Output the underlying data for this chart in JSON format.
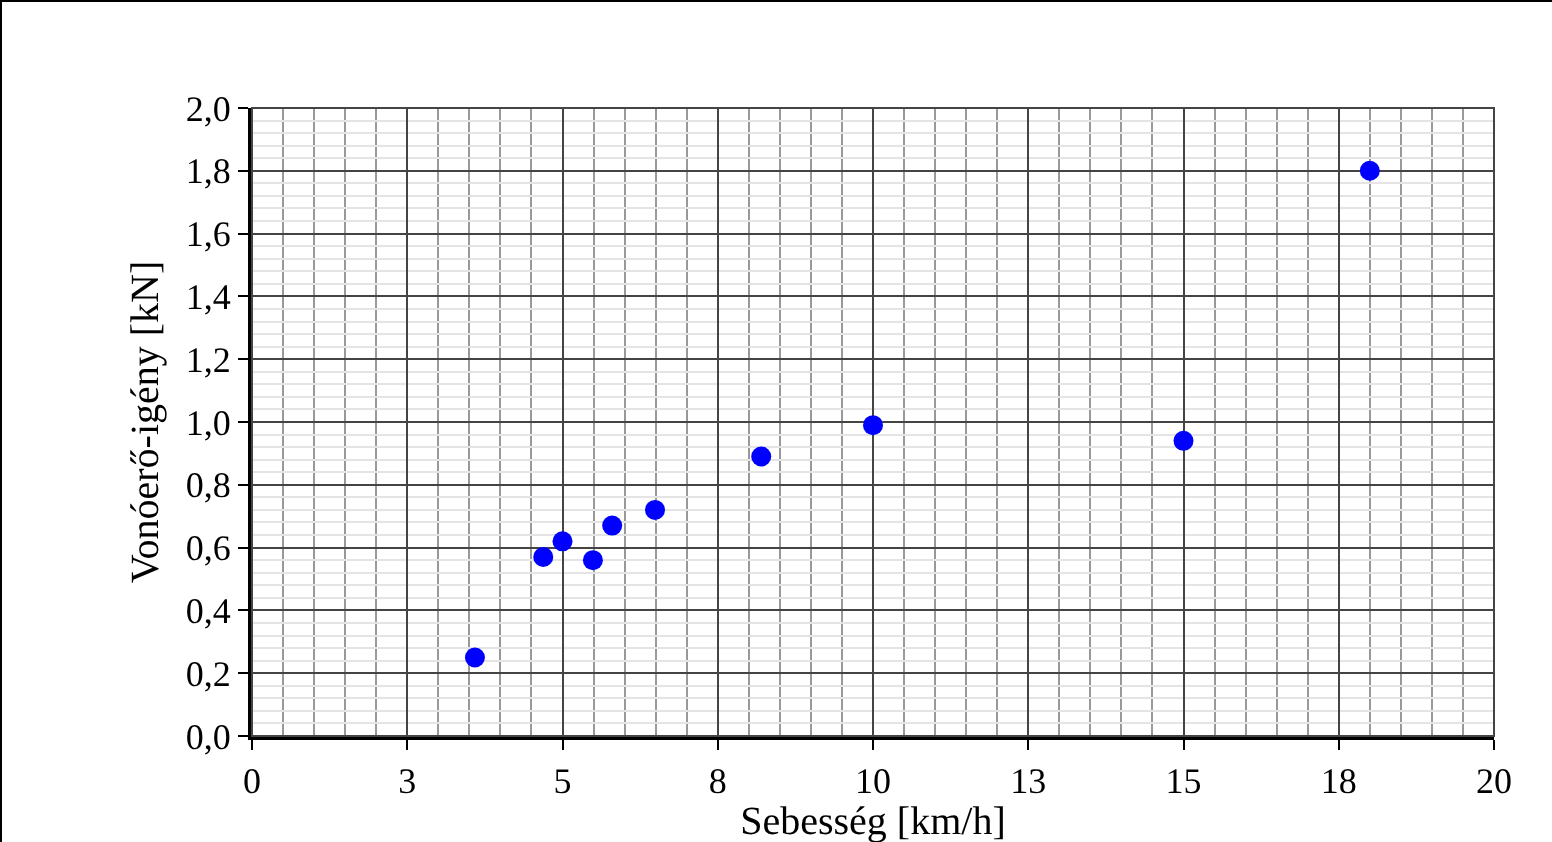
{
  "chart_data": {
    "type": "scatter",
    "xlabel": "Sebesség [km/h]",
    "ylabel": "Vonóerő-igény [kN]",
    "series": [
      {
        "color": "#0000ff",
        "x": [
          3.59,
          4.69,
          5.0,
          5.49,
          5.8,
          6.49,
          8.2,
          10.0,
          15.0,
          18.0
        ],
        "values": [
          0.25,
          0.57,
          0.62,
          0.56,
          0.67,
          0.72,
          0.89,
          0.99,
          0.94,
          1.8
        ]
      }
    ],
    "xlim": [
      0,
      20
    ],
    "xticks": [
      0,
      {
        "value": 2.5,
        "label": "3"
      },
      5,
      {
        "value": 7.5,
        "label": "8"
      },
      10,
      {
        "value": 12.5,
        "label": "13"
      },
      15,
      {
        "value": 17.5,
        "label": "18"
      },
      20
    ],
    "ylim": [
      0,
      2
    ],
    "yticks": [
      {
        "value": 0,
        "label": "0,0"
      },
      {
        "value": 0.2,
        "label": "0,2"
      },
      {
        "value": 0.4,
        "label": "0,4"
      },
      {
        "value": 0.6,
        "label": "0,6"
      },
      {
        "value": 0.8,
        "label": "0,8"
      },
      {
        "value": 1,
        "label": "1,0"
      },
      {
        "value": 1.2,
        "label": "1,2"
      },
      {
        "value": 1.4,
        "label": "1,4"
      },
      {
        "value": 1.6,
        "label": "1,6"
      },
      {
        "value": 1.8,
        "label": "1,8"
      },
      {
        "value": 2,
        "label": "2,0"
      }
    ],
    "grid": true,
    "marker": "circle"
  }
}
